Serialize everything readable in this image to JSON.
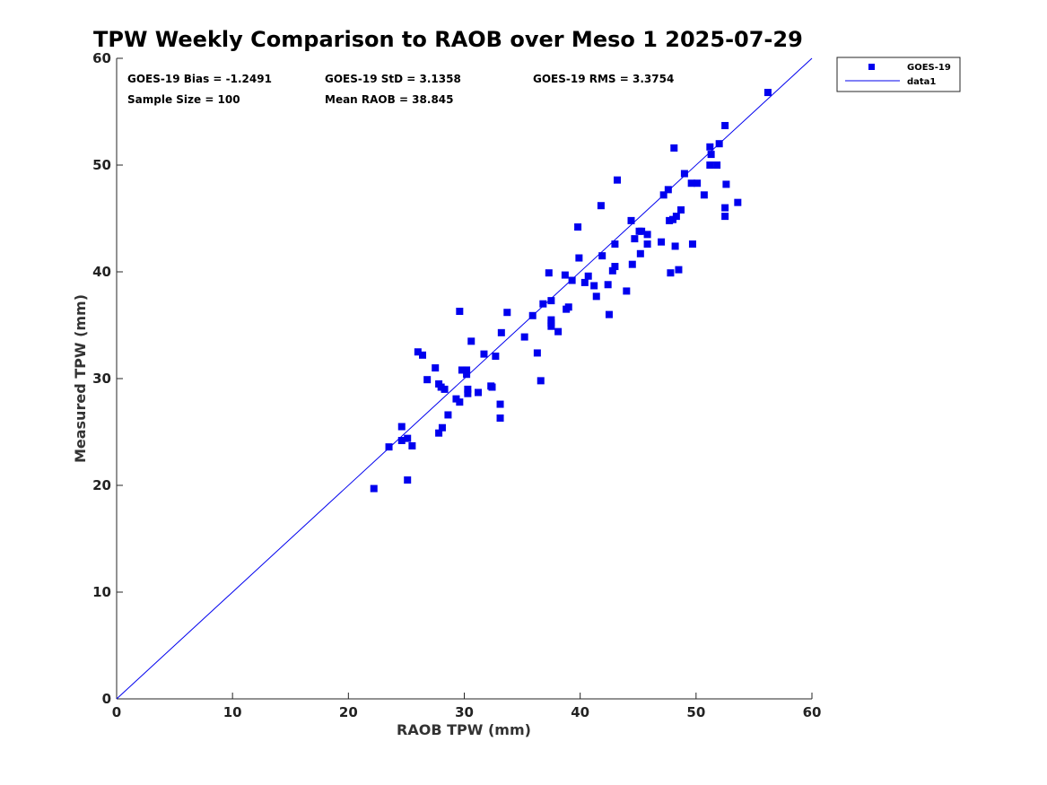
{
  "chart_data": {
    "type": "scatter",
    "title": "TPW Weekly Comparison to RAOB over Meso 1 2025-07-29",
    "xlabel": "RAOB TPW (mm)",
    "ylabel": "Measured TPW (mm)",
    "xlim": [
      0,
      60
    ],
    "ylim": [
      0,
      60
    ],
    "xticks": [
      "0",
      "10",
      "20",
      "30",
      "40",
      "50",
      "60"
    ],
    "yticks": [
      "0",
      "10",
      "20",
      "30",
      "40",
      "50",
      "60"
    ],
    "grid": false,
    "legend_position": "outside-top-right",
    "stats": {
      "bias": "GOES-19 Bias = -1.2491",
      "std": "GOES-19 StD = 3.1358",
      "rms": "GOES-19 RMS = 3.3754",
      "sample_size": "Sample Size = 100",
      "mean_raob": "Mean RAOB = 38.845"
    },
    "series": [
      {
        "name": "GOES-19",
        "kind": "scatter",
        "marker": "square",
        "color": "#0000ee",
        "points": [
          [
            22.2,
            19.7
          ],
          [
            23.5,
            23.6
          ],
          [
            24.6,
            25.5
          ],
          [
            24.6,
            24.2
          ],
          [
            25.1,
            24.4
          ],
          [
            25.1,
            20.5
          ],
          [
            25.5,
            23.7
          ],
          [
            26.0,
            32.5
          ],
          [
            26.4,
            32.2
          ],
          [
            26.8,
            29.9
          ],
          [
            27.5,
            31.0
          ],
          [
            27.8,
            29.5
          ],
          [
            27.8,
            24.9
          ],
          [
            28.0,
            29.2
          ],
          [
            28.1,
            25.4
          ],
          [
            28.3,
            29.0
          ],
          [
            28.6,
            26.6
          ],
          [
            29.3,
            28.1
          ],
          [
            29.6,
            36.3
          ],
          [
            29.6,
            27.8
          ],
          [
            29.8,
            30.8
          ],
          [
            30.2,
            30.4
          ],
          [
            30.2,
            30.8
          ],
          [
            30.3,
            29.0
          ],
          [
            30.3,
            28.6
          ],
          [
            30.6,
            33.5
          ],
          [
            31.2,
            28.7
          ],
          [
            31.7,
            32.3
          ],
          [
            32.3,
            29.3
          ],
          [
            32.4,
            29.2
          ],
          [
            32.7,
            32.1
          ],
          [
            33.1,
            27.6
          ],
          [
            33.1,
            26.3
          ],
          [
            33.2,
            34.3
          ],
          [
            33.7,
            36.2
          ],
          [
            35.2,
            33.9
          ],
          [
            35.9,
            35.9
          ],
          [
            36.3,
            32.4
          ],
          [
            36.6,
            29.8
          ],
          [
            36.8,
            37.0
          ],
          [
            37.3,
            39.9
          ],
          [
            37.5,
            37.3
          ],
          [
            37.5,
            35.5
          ],
          [
            37.5,
            35.2
          ],
          [
            37.5,
            34.9
          ],
          [
            38.1,
            34.4
          ],
          [
            38.7,
            39.7
          ],
          [
            38.8,
            36.5
          ],
          [
            39.0,
            36.7
          ],
          [
            39.3,
            39.2
          ],
          [
            39.8,
            44.2
          ],
          [
            39.9,
            41.3
          ],
          [
            40.4,
            39.0
          ],
          [
            40.7,
            39.6
          ],
          [
            41.2,
            38.7
          ],
          [
            41.4,
            37.7
          ],
          [
            41.8,
            46.2
          ],
          [
            41.9,
            41.5
          ],
          [
            42.4,
            38.8
          ],
          [
            42.5,
            36.0
          ],
          [
            42.8,
            40.1
          ],
          [
            43.0,
            42.6
          ],
          [
            43.0,
            40.5
          ],
          [
            43.2,
            48.6
          ],
          [
            44.0,
            38.2
          ],
          [
            44.4,
            44.8
          ],
          [
            44.5,
            40.7
          ],
          [
            44.7,
            43.1
          ],
          [
            45.1,
            43.8
          ],
          [
            45.2,
            41.7
          ],
          [
            45.3,
            43.8
          ],
          [
            45.8,
            43.5
          ],
          [
            45.8,
            42.6
          ],
          [
            47.0,
            42.8
          ],
          [
            47.2,
            47.2
          ],
          [
            47.6,
            47.7
          ],
          [
            47.7,
            44.8
          ],
          [
            47.8,
            39.9
          ],
          [
            48.0,
            44.9
          ],
          [
            48.1,
            51.6
          ],
          [
            48.2,
            42.4
          ],
          [
            48.3,
            45.2
          ],
          [
            48.5,
            40.2
          ],
          [
            48.7,
            45.8
          ],
          [
            49.0,
            49.2
          ],
          [
            49.7,
            42.6
          ],
          [
            50.1,
            48.3
          ],
          [
            50.7,
            47.2
          ],
          [
            51.2,
            50.0
          ],
          [
            51.2,
            51.7
          ],
          [
            51.3,
            51.0
          ],
          [
            51.8,
            50.0
          ],
          [
            52.0,
            52.0
          ],
          [
            52.5,
            53.7
          ],
          [
            52.6,
            48.2
          ],
          [
            52.5,
            46.0
          ],
          [
            52.5,
            45.2
          ],
          [
            53.6,
            46.5
          ],
          [
            56.2,
            56.8
          ],
          [
            49.6,
            48.3
          ]
        ]
      },
      {
        "name": "data1",
        "kind": "line",
        "color": "#0000ee",
        "points": [
          [
            0,
            0
          ],
          [
            60,
            60
          ]
        ]
      }
    ]
  }
}
